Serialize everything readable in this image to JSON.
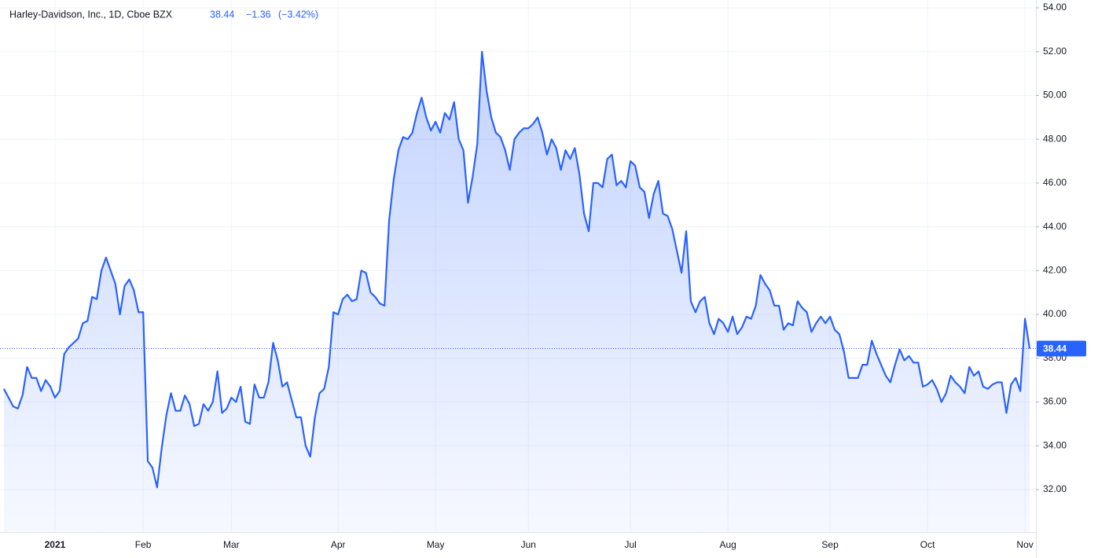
{
  "chart_data": {
    "type": "area",
    "title": "Harley-Davidson, Inc., 1D, Cboe BZX",
    "change": "−1.36",
    "change_percent": "(−3.42%)",
    "color": "#2962ff",
    "grid": true,
    "ylim": [
      30.06,
      54.36
    ],
    "yticks": [
      {
        "value": 32,
        "label": "32.00"
      },
      {
        "value": 34,
        "label": "34.00"
      },
      {
        "value": 36,
        "label": "36.00"
      },
      {
        "value": 38,
        "label": "38.00"
      },
      {
        "value": 40,
        "label": "40.00"
      },
      {
        "value": 42,
        "label": "42.00"
      },
      {
        "value": 44,
        "label": "44.00"
      },
      {
        "value": 46,
        "label": "46.00"
      },
      {
        "value": 48,
        "label": "48.00"
      },
      {
        "value": 50,
        "label": "50.00"
      },
      {
        "value": 52,
        "label": "52.00"
      },
      {
        "value": 54,
        "label": "54.00"
      }
    ],
    "categories": [
      null,
      null,
      null,
      null,
      null,
      null,
      null,
      null,
      null,
      null,
      null,
      "2021",
      null,
      null,
      null,
      null,
      null,
      null,
      null,
      null,
      null,
      null,
      null,
      null,
      null,
      null,
      null,
      null,
      null,
      null,
      "Feb",
      null,
      null,
      null,
      null,
      null,
      null,
      null,
      null,
      null,
      null,
      null,
      null,
      null,
      null,
      null,
      null,
      null,
      null,
      "Mar",
      null,
      null,
      null,
      null,
      null,
      null,
      null,
      null,
      null,
      null,
      null,
      null,
      null,
      null,
      null,
      null,
      null,
      null,
      null,
      null,
      null,
      null,
      "Apr",
      null,
      null,
      null,
      null,
      null,
      null,
      null,
      null,
      null,
      null,
      null,
      null,
      null,
      null,
      null,
      null,
      null,
      null,
      null,
      null,
      "May",
      null,
      null,
      null,
      null,
      null,
      null,
      null,
      null,
      null,
      null,
      null,
      null,
      null,
      null,
      null,
      null,
      null,
      null,
      null,
      "Jun",
      null,
      null,
      null,
      null,
      null,
      null,
      null,
      null,
      null,
      null,
      null,
      null,
      null,
      null,
      null,
      null,
      null,
      null,
      null,
      null,
      null,
      "Jul",
      null,
      null,
      null,
      null,
      null,
      null,
      null,
      null,
      null,
      null,
      null,
      null,
      null,
      null,
      null,
      null,
      null,
      null,
      null,
      null,
      "Aug",
      null,
      null,
      null,
      null,
      null,
      null,
      null,
      null,
      null,
      null,
      null,
      null,
      null,
      null,
      null,
      null,
      null,
      null,
      null,
      null,
      null,
      "Sep",
      null,
      null,
      null,
      null,
      null,
      null,
      null,
      null,
      null,
      null,
      null,
      null,
      null,
      null,
      null,
      null,
      null,
      null,
      null,
      null,
      "Oct",
      null,
      null,
      null,
      null,
      null,
      null,
      null,
      null,
      null,
      null,
      null,
      null,
      null,
      null,
      null,
      null,
      null,
      null,
      null,
      null,
      "Nov",
      null
    ],
    "values": [
      36.6,
      36.2,
      35.8,
      35.7,
      36.3,
      37.6,
      37.1,
      37.1,
      36.5,
      37.0,
      36.7,
      36.2,
      36.5,
      38.2,
      38.5,
      38.7,
      38.9,
      39.6,
      39.7,
      40.8,
      40.7,
      42.0,
      42.6,
      42.0,
      41.4,
      40.0,
      41.3,
      41.6,
      41.1,
      40.1,
      40.1,
      33.3,
      33.0,
      32.1,
      33.9,
      35.4,
      36.4,
      35.6,
      35.6,
      36.3,
      35.9,
      34.9,
      35.0,
      35.9,
      35.6,
      36.0,
      37.4,
      35.5,
      35.7,
      36.2,
      36.0,
      36.7,
      35.1,
      35.0,
      36.8,
      36.2,
      36.2,
      36.9,
      38.7,
      37.9,
      36.7,
      36.9,
      36.1,
      35.3,
      35.3,
      34.0,
      33.5,
      35.3,
      36.4,
      36.6,
      37.6,
      40.1,
      40.0,
      40.7,
      40.9,
      40.6,
      40.7,
      42.0,
      41.9,
      41.0,
      40.8,
      40.5,
      40.4,
      44.3,
      46.2,
      47.5,
      48.1,
      48.0,
      48.3,
      49.2,
      49.9,
      49.0,
      48.4,
      48.8,
      48.3,
      49.2,
      48.9,
      49.7,
      48.0,
      47.5,
      45.1,
      46.3,
      47.8,
      52.0,
      50.2,
      49.0,
      48.3,
      48.1,
      47.5,
      46.6,
      48.0,
      48.3,
      48.5,
      48.5,
      48.7,
      49.0,
      48.3,
      47.3,
      48.0,
      47.6,
      46.6,
      47.5,
      47.1,
      47.6,
      46.4,
      44.6,
      43.8,
      46.0,
      46.0,
      45.8,
      47.1,
      47.3,
      45.9,
      46.1,
      45.8,
      47.0,
      46.8,
      45.8,
      45.6,
      44.4,
      45.5,
      46.1,
      44.6,
      44.5,
      43.9,
      42.9,
      41.9,
      43.8,
      40.6,
      40.1,
      40.6,
      40.8,
      39.6,
      39.1,
      39.8,
      39.6,
      39.2,
      39.9,
      39.1,
      39.4,
      39.9,
      39.8,
      40.4,
      41.8,
      41.4,
      41.1,
      40.4,
      40.4,
      39.3,
      39.6,
      39.5,
      40.6,
      40.3,
      40.1,
      39.2,
      39.6,
      39.9,
      39.6,
      39.9,
      39.3,
      39.1,
      38.3,
      37.1,
      37.1,
      37.1,
      37.7,
      37.7,
      38.8,
      38.2,
      37.7,
      37.2,
      36.9,
      37.7,
      38.4,
      37.9,
      38.1,
      37.8,
      37.8,
      36.7,
      36.8,
      37.0,
      36.6,
      36.0,
      36.4,
      37.2,
      36.9,
      36.7,
      36.4,
      37.6,
      37.2,
      37.4,
      36.7,
      36.6,
      36.8,
      36.9,
      36.9,
      35.5,
      36.8,
      37.1,
      36.5,
      39.8,
      38.44
    ]
  }
}
